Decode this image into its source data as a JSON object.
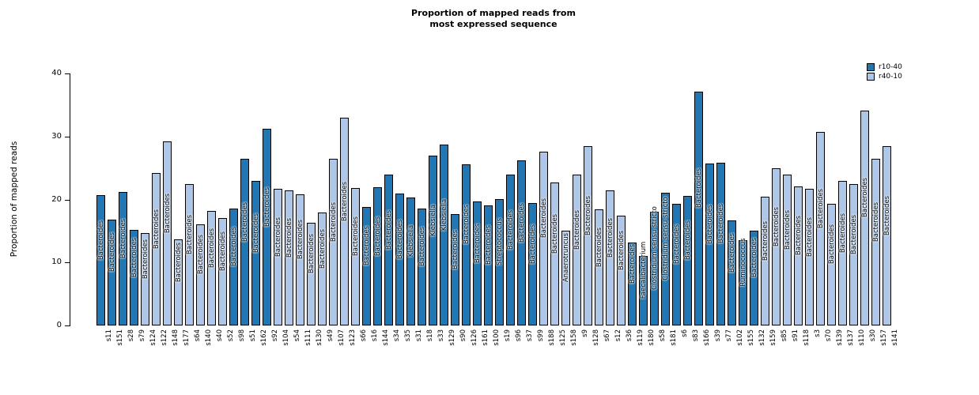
{
  "title": {
    "line1": "Proportion of mapped reads from",
    "line2": "most expressed sequence"
  },
  "y_axis": {
    "label": "Proportion of mapped reads",
    "ticks": [
      0,
      10,
      20,
      30,
      40
    ]
  },
  "legend": {
    "items": [
      {
        "label": "r10-40",
        "color": "#2077b4"
      },
      {
        "label": "r40-10",
        "color": "#aec7e8"
      }
    ]
  },
  "chart_data": {
    "type": "bar",
    "title": "Proportion of mapped reads from most expressed sequence",
    "xlabel": "",
    "ylabel": "Proportion of mapped reads",
    "ylim": [
      0,
      40
    ],
    "grid": false,
    "legend_position": "top-right",
    "groups": {
      "r10-40": "#2077b4",
      "r40-10": "#aec7e8"
    },
    "bars": [
      {
        "sample": "s11",
        "value": 20.7,
        "group": "r10-40",
        "genus": "Bacteroides"
      },
      {
        "sample": "s151",
        "value": 16.8,
        "group": "r10-40",
        "genus": "Bacteroides"
      },
      {
        "sample": "s28",
        "value": 21.2,
        "group": "r10-40",
        "genus": "Bacteroides"
      },
      {
        "sample": "s79",
        "value": 15.2,
        "group": "r10-40",
        "genus": "Bacteroides"
      },
      {
        "sample": "s124",
        "value": 14.7,
        "group": "r40-10",
        "genus": "Bacteroides"
      },
      {
        "sample": "s122",
        "value": 24.2,
        "group": "r40-10",
        "genus": "Bacteroides"
      },
      {
        "sample": "s148",
        "value": 29.2,
        "group": "r40-10",
        "genus": "Bacteroides"
      },
      {
        "sample": "s177",
        "value": 13.7,
        "group": "r40-10",
        "genus": "Bacteroides"
      },
      {
        "sample": "s64",
        "value": 22.4,
        "group": "r40-10",
        "genus": "Bacteroides"
      },
      {
        "sample": "s140",
        "value": 16.1,
        "group": "r40-10",
        "genus": "Bacteroides"
      },
      {
        "sample": "s40",
        "value": 18.2,
        "group": "r40-10",
        "genus": "Bacteroides"
      },
      {
        "sample": "s52",
        "value": 17.1,
        "group": "r40-10",
        "genus": "Bacteroides"
      },
      {
        "sample": "s98",
        "value": 18.6,
        "group": "r10-40",
        "genus": "Bacteroides"
      },
      {
        "sample": "s51",
        "value": 26.5,
        "group": "r10-40",
        "genus": "Bacteroides"
      },
      {
        "sample": "s162",
        "value": 22.9,
        "group": "r10-40",
        "genus": "Bacteroides"
      },
      {
        "sample": "s92",
        "value": 31.2,
        "group": "r10-40",
        "genus": "Bacteroides"
      },
      {
        "sample": "s104",
        "value": 21.7,
        "group": "r40-10",
        "genus": "Bacteroides"
      },
      {
        "sample": "s54",
        "value": 21.5,
        "group": "r40-10",
        "genus": "Bacteroides"
      },
      {
        "sample": "s111",
        "value": 20.8,
        "group": "r40-10",
        "genus": "Bacteroides"
      },
      {
        "sample": "s130",
        "value": 16.3,
        "group": "r40-10",
        "genus": "Bacteroides"
      },
      {
        "sample": "s49",
        "value": 17.9,
        "group": "r40-10",
        "genus": "Bacteroides"
      },
      {
        "sample": "s107",
        "value": 26.4,
        "group": "r40-10",
        "genus": "Bacteroides"
      },
      {
        "sample": "s123",
        "value": 33.0,
        "group": "r40-10",
        "genus": "Bacteroides"
      },
      {
        "sample": "s66",
        "value": 21.8,
        "group": "r40-10",
        "genus": "Bacteroides"
      },
      {
        "sample": "s16",
        "value": 18.8,
        "group": "r10-40",
        "genus": "Bacteroides"
      },
      {
        "sample": "s144",
        "value": 22.0,
        "group": "r10-40",
        "genus": "Bacteroides"
      },
      {
        "sample": "s34",
        "value": 24.0,
        "group": "r10-40",
        "genus": "Bacteroides"
      },
      {
        "sample": "s35",
        "value": 20.9,
        "group": "r10-40",
        "genus": "Bacteroides"
      },
      {
        "sample": "s31",
        "value": 20.3,
        "group": "r10-40",
        "genus": "Klebsiella"
      },
      {
        "sample": "s18",
        "value": 18.5,
        "group": "r10-40",
        "genus": "Bacteroides"
      },
      {
        "sample": "s33",
        "value": 26.9,
        "group": "r10-40",
        "genus": "Klebsiella"
      },
      {
        "sample": "s129",
        "value": 28.7,
        "group": "r10-40",
        "genus": "Klebsiella"
      },
      {
        "sample": "s90",
        "value": 17.7,
        "group": "r10-40",
        "genus": "Bacteroides"
      },
      {
        "sample": "s126",
        "value": 25.6,
        "group": "r10-40",
        "genus": "Bacteroides"
      },
      {
        "sample": "s161",
        "value": 19.7,
        "group": "r10-40",
        "genus": "Bacteroides"
      },
      {
        "sample": "s100",
        "value": 19.0,
        "group": "r10-40",
        "genus": "Bacteroides"
      },
      {
        "sample": "s19",
        "value": 20.1,
        "group": "r10-40",
        "genus": "Streptococcus"
      },
      {
        "sample": "s96",
        "value": 24.0,
        "group": "r10-40",
        "genus": "Bacteroides"
      },
      {
        "sample": "s37",
        "value": 26.2,
        "group": "r10-40",
        "genus": "Bacteroides"
      },
      {
        "sample": "s99",
        "value": 19.4,
        "group": "r10-40",
        "genus": "Bacteroides"
      },
      {
        "sample": "s188",
        "value": 27.6,
        "group": "r40-10",
        "genus": "Bacteroides"
      },
      {
        "sample": "s125",
        "value": 22.7,
        "group": "r40-10",
        "genus": "Bacteroides"
      },
      {
        "sample": "s158",
        "value": 15.0,
        "group": "r40-10",
        "genus": "Anaerotruncus"
      },
      {
        "sample": "s9",
        "value": 24.0,
        "group": "r40-10",
        "genus": "Bacteroides"
      },
      {
        "sample": "s128",
        "value": 28.5,
        "group": "r40-10",
        "genus": "Bacteroides"
      },
      {
        "sample": "s67",
        "value": 18.4,
        "group": "r40-10",
        "genus": "Bacteroides"
      },
      {
        "sample": "s12",
        "value": 21.4,
        "group": "r40-10",
        "genus": "Bacteroides"
      },
      {
        "sample": "s36",
        "value": 17.4,
        "group": "r40-10",
        "genus": "Bacteroides"
      },
      {
        "sample": "s119",
        "value": 13.2,
        "group": "r10-40",
        "genus": "Bacteroides"
      },
      {
        "sample": "s180",
        "value": 11.0,
        "group": "r10-40",
        "genus": "Faecalibacterium"
      },
      {
        "sample": "s58",
        "value": 18.1,
        "group": "r10-40",
        "genus": "Clostridium sensu stricto"
      },
      {
        "sample": "s181",
        "value": 21.1,
        "group": "r10-40",
        "genus": "Clostridium sensu stricto"
      },
      {
        "sample": "s6",
        "value": 19.3,
        "group": "r10-40",
        "genus": "Bacteroides"
      },
      {
        "sample": "s83",
        "value": 20.6,
        "group": "r10-40",
        "genus": "Bacteroides"
      },
      {
        "sample": "s166",
        "value": 37.1,
        "group": "r10-40",
        "genus": "Bacteroides"
      },
      {
        "sample": "s39",
        "value": 25.7,
        "group": "r10-40",
        "genus": "Bacteroides"
      },
      {
        "sample": "s77",
        "value": 25.8,
        "group": "r10-40",
        "genus": "Bacteroides"
      },
      {
        "sample": "s102",
        "value": 16.7,
        "group": "r10-40",
        "genus": "Bacteroides"
      },
      {
        "sample": "s155",
        "value": 13.5,
        "group": "r10-40",
        "genus": "Ruminococcus"
      },
      {
        "sample": "s132",
        "value": 15.1,
        "group": "r10-40",
        "genus": "Bacteroides"
      },
      {
        "sample": "s159",
        "value": 20.4,
        "group": "r40-10",
        "genus": "Bacteroides"
      },
      {
        "sample": "s85",
        "value": 25.0,
        "group": "r40-10",
        "genus": "Bacteroides"
      },
      {
        "sample": "s91",
        "value": 24.0,
        "group": "r40-10",
        "genus": "Bacteroides"
      },
      {
        "sample": "s118",
        "value": 22.1,
        "group": "r40-10",
        "genus": "Bacteroides"
      },
      {
        "sample": "s3",
        "value": 21.7,
        "group": "r40-10",
        "genus": "Bacteroides"
      },
      {
        "sample": "s70",
        "value": 30.7,
        "group": "r40-10",
        "genus": "Bacteroides"
      },
      {
        "sample": "s139",
        "value": 19.3,
        "group": "r40-10",
        "genus": "Bacteroides"
      },
      {
        "sample": "s137",
        "value": 22.9,
        "group": "r40-10",
        "genus": "Bacteroides"
      },
      {
        "sample": "s110",
        "value": 22.4,
        "group": "r40-10",
        "genus": "Bacteroides"
      },
      {
        "sample": "s30",
        "value": 34.1,
        "group": "r40-10",
        "genus": "Bacteroides"
      },
      {
        "sample": "s157",
        "value": 26.4,
        "group": "r40-10",
        "genus": "Bacteroides"
      },
      {
        "sample": "s141",
        "value": 28.5,
        "group": "r40-10",
        "genus": "Bacteroides"
      }
    ]
  }
}
